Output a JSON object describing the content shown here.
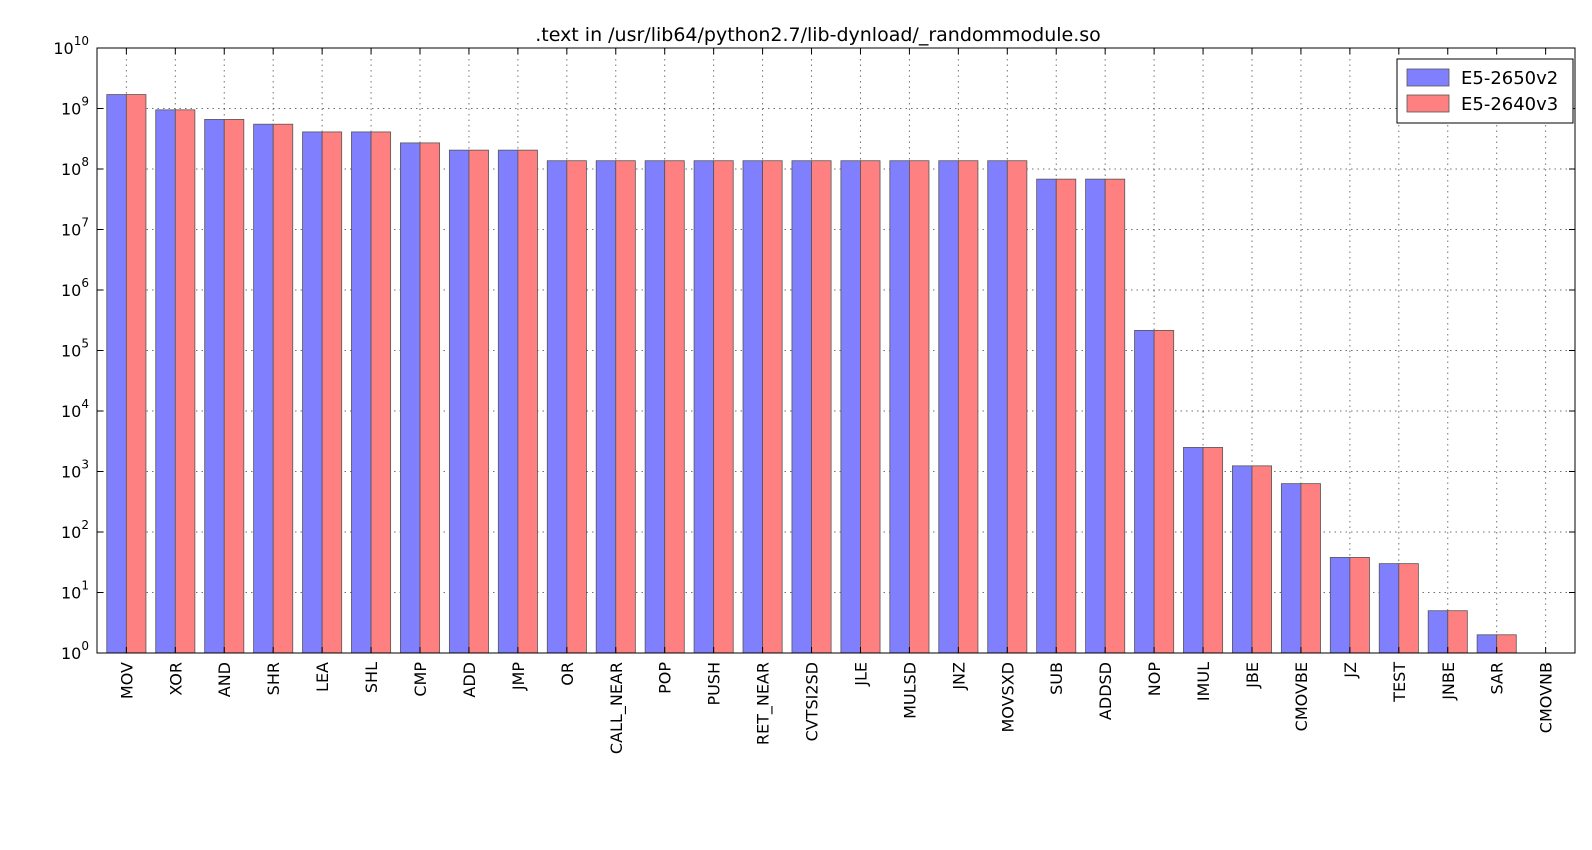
{
  "chart_data": {
    "type": "bar",
    "title": ".text in /usr/lib64/python2.7/lib-dynload/_randommodule.so",
    "xlabel": "",
    "ylabel": "",
    "yscale": "log",
    "ylim": [
      1,
      10000000000
    ],
    "ytick_base": "10",
    "ytick_exponents": [
      "0",
      "1",
      "2",
      "3",
      "4",
      "5",
      "6",
      "7",
      "8",
      "9",
      "10"
    ],
    "grid": true,
    "legend_position": "top-right",
    "categories": [
      "MOV",
      "XOR",
      "AND",
      "SHR",
      "LEA",
      "SHL",
      "CMP",
      "ADD",
      "JMP",
      "OR",
      "CALL_NEAR",
      "POP",
      "PUSH",
      "RET_NEAR",
      "CVTSI2SD",
      "JLE",
      "MULSD",
      "JNZ",
      "MOVSXD",
      "SUB",
      "ADDSD",
      "NOP",
      "IMUL",
      "JBE",
      "CMOVBE",
      "JZ",
      "TEST",
      "JNBE",
      "SAR",
      "CMOVNB"
    ],
    "series": [
      {
        "name": "E5-2650v2",
        "color": "#8080ff",
        "values": [
          1700000000,
          950000000,
          660000000,
          550000000,
          410000000,
          410000000,
          270000000,
          205000000,
          205000000,
          137000000,
          137000000,
          137000000,
          137000000,
          137000000,
          137000000,
          137000000,
          137000000,
          137000000,
          137000000,
          68000000,
          68000000,
          215000,
          2500,
          1240,
          630,
          38,
          30,
          5,
          2,
          1
        ]
      },
      {
        "name": "E5-2640v3",
        "color": "#ff8080",
        "values": [
          1700000000,
          950000000,
          660000000,
          550000000,
          410000000,
          410000000,
          270000000,
          205000000,
          205000000,
          137000000,
          137000000,
          137000000,
          137000000,
          137000000,
          137000000,
          137000000,
          137000000,
          137000000,
          137000000,
          68000000,
          68000000,
          215000,
          2500,
          1240,
          630,
          38,
          30,
          5,
          2,
          1
        ]
      }
    ]
  }
}
